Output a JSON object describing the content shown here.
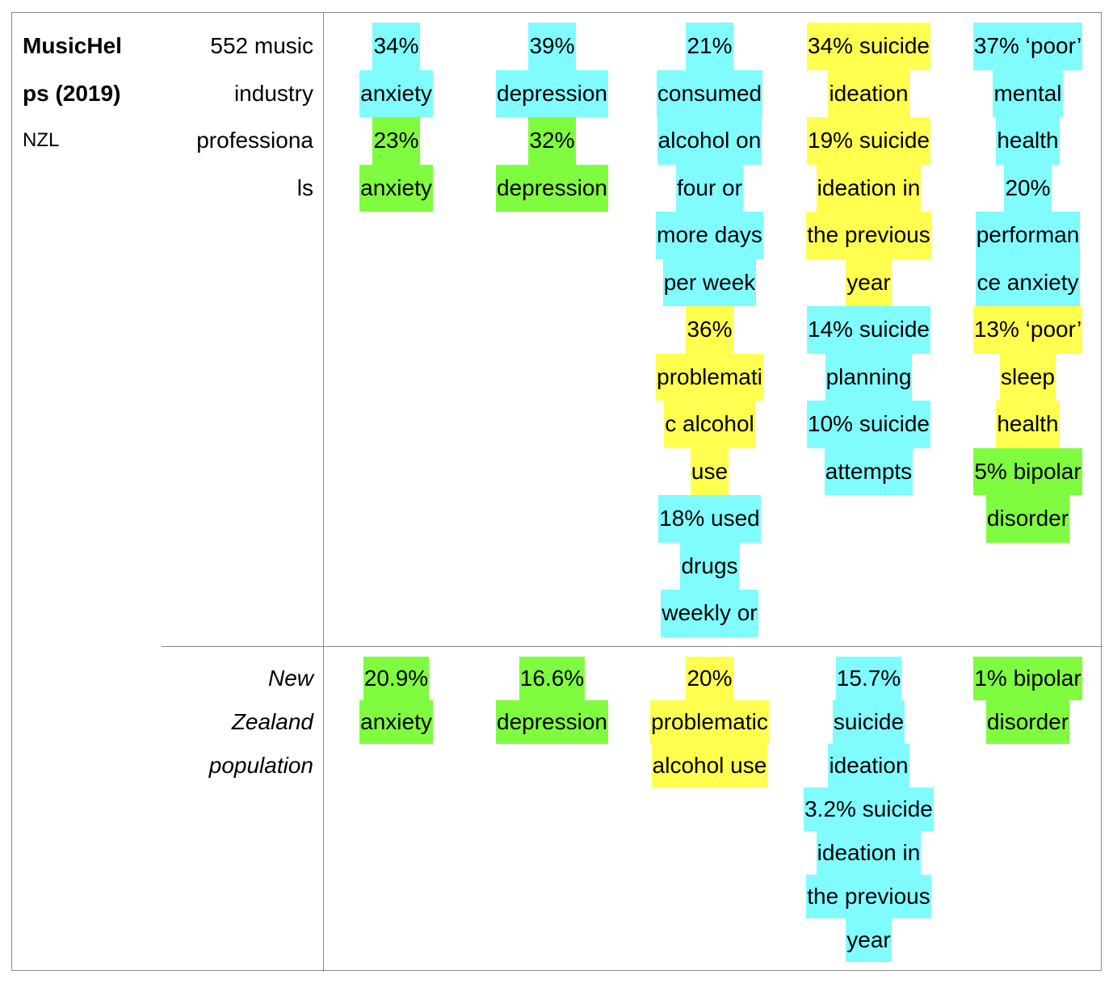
{
  "colors": {
    "cyan": "#80fcff",
    "green": "#80fc40",
    "yellow": "#ffff50"
  },
  "study": {
    "name_lines": [
      "MusicHel",
      "ps (2019)"
    ],
    "country": "NZL"
  },
  "rows": [
    {
      "sample_lines": [
        "552 music",
        "industry",
        "professiona",
        "ls"
      ],
      "italic": false,
      "cells": [
        [
          {
            "c": "cyan",
            "lines": [
              "34%",
              "anxiety"
            ]
          },
          {
            "c": "green",
            "lines": [
              "23%",
              "anxiety"
            ]
          }
        ],
        [
          {
            "c": "cyan",
            "lines": [
              "39%",
              "depression"
            ]
          },
          {
            "c": "green",
            "lines": [
              "32%",
              "depression"
            ]
          }
        ],
        [
          {
            "c": "cyan",
            "lines": [
              "21%",
              "consumed",
              "alcohol on",
              "four or",
              "more days",
              "per week"
            ]
          },
          {
            "c": "yellow",
            "lines": [
              "36%",
              "problemati",
              "c alcohol",
              "use"
            ]
          },
          {
            "c": "cyan",
            "lines": [
              "18% used",
              "drugs",
              "weekly or"
            ]
          }
        ],
        [
          {
            "c": "yellow",
            "lines": [
              "34% suicide",
              "ideation",
              "19% suicide",
              "ideation in",
              "the previous",
              "year"
            ]
          },
          {
            "c": "cyan",
            "lines": [
              "14% suicide",
              "planning",
              "10% suicide",
              "attempts"
            ]
          }
        ],
        [
          {
            "c": "cyan",
            "lines": [
              "37% ‘poor’",
              "mental",
              "health",
              "20%",
              "performan",
              "ce anxiety"
            ]
          },
          {
            "c": "yellow",
            "lines": [
              "13% ‘poor’",
              "sleep",
              "health"
            ]
          },
          {
            "c": "green",
            "lines": [
              "5% bipolar",
              "disorder"
            ]
          }
        ]
      ]
    },
    {
      "sample_lines": [
        "New",
        "Zealand",
        "population"
      ],
      "italic": true,
      "cells": [
        [
          {
            "c": "green",
            "lines": [
              "20.9%",
              "anxiety"
            ]
          }
        ],
        [
          {
            "c": "green",
            "lines": [
              "16.6%",
              "depression"
            ]
          }
        ],
        [
          {
            "c": "yellow",
            "lines": [
              "20%",
              "problematic",
              "alcohol use"
            ]
          }
        ],
        [
          {
            "c": "cyan",
            "lines": [
              "15.7%",
              "suicide",
              "ideation",
              "3.2% suicide",
              "ideation in",
              "the previous",
              "year"
            ]
          }
        ],
        [
          {
            "c": "green",
            "lines": [
              "1% bipolar",
              "disorder"
            ]
          }
        ]
      ]
    }
  ]
}
